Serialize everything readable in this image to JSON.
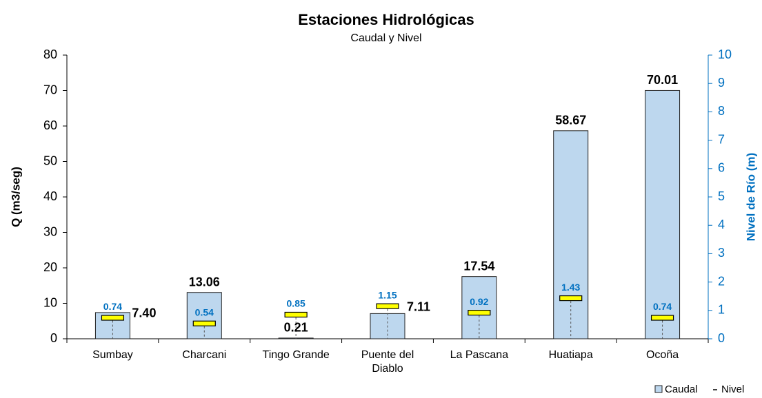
{
  "chart_data": {
    "type": "bar_marker",
    "title": "Estaciones Hidrológicas",
    "subtitle": "Caudal y Nivel",
    "y_label": "Q (m3/seg)",
    "y2_label": "Nivel de Río (m)",
    "categories": [
      "Sumbay",
      "Charcani",
      "Tingo Grande",
      "Puente del Diablo",
      "La Pascana",
      "Huatiapa",
      "Ocoña"
    ],
    "series": [
      {
        "name": "Caudal",
        "color": "#bdd7ee",
        "values": [
          7.4,
          13.06,
          0.21,
          7.11,
          17.54,
          58.67,
          70.01
        ],
        "value_labels": [
          "7.40",
          "13.06",
          "0.21",
          "7.11",
          "17.54",
          "58.67",
          "70.01"
        ]
      },
      {
        "name": "Nivel",
        "color": "#ffff00",
        "axis": "y2",
        "values": [
          0.74,
          0.54,
          0.85,
          1.15,
          0.92,
          1.43,
          0.74
        ]
      }
    ],
    "ylim": [
      0,
      80
    ],
    "yticks": [
      0,
      10,
      20,
      30,
      40,
      50,
      60,
      70,
      80
    ],
    "y2lim": [
      0,
      10
    ],
    "y2ticks": [
      0,
      1,
      2,
      3,
      4,
      5,
      6,
      7,
      8,
      9,
      10
    ],
    "legend": "bottom-right"
  }
}
